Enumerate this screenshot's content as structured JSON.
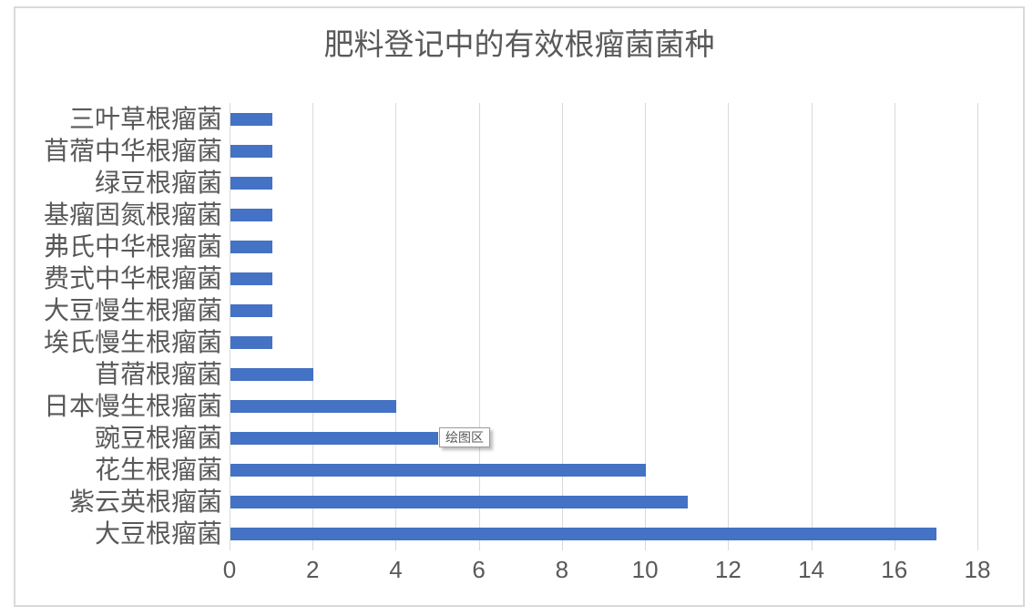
{
  "chart_data": {
    "type": "bar",
    "orientation": "horizontal",
    "title": "肥料登记中的有效根瘤菌菌种",
    "category_order": "top-to-bottom",
    "categories": [
      "三叶草根瘤菌",
      "苜蓿中华根瘤菌",
      "绿豆根瘤菌",
      "基瘤固氮根瘤菌",
      "弗氏中华根瘤菌",
      "费式中华根瘤菌",
      "大豆慢生根瘤菌",
      "埃氏慢生根瘤菌",
      "苜蓿根瘤菌",
      "日本慢生根瘤菌",
      "豌豆根瘤菌",
      "花生根瘤菌",
      "紫云英根瘤菌",
      "大豆根瘤菌"
    ],
    "values": [
      1,
      1,
      1,
      1,
      1,
      1,
      1,
      1,
      2,
      4,
      5,
      10,
      11,
      17
    ],
    "xlabel": "",
    "ylabel": "",
    "xlim": [
      0,
      18
    ],
    "x_ticks": [
      0,
      2,
      4,
      6,
      8,
      10,
      12,
      14,
      16,
      18
    ],
    "grid": "vertical-gridlines",
    "legend": "none",
    "bar_color": "#4472C4"
  },
  "tooltip": {
    "label": "绘图区"
  },
  "colors": {
    "bar": "#4472C4",
    "gridline": "#D9D9D9",
    "axis_text": "#595959",
    "title_text": "#595959",
    "chart_border": "#D9D9D9",
    "tooltip_border": "#9B9B9B",
    "tooltip_bg": "#FFFFFF"
  }
}
